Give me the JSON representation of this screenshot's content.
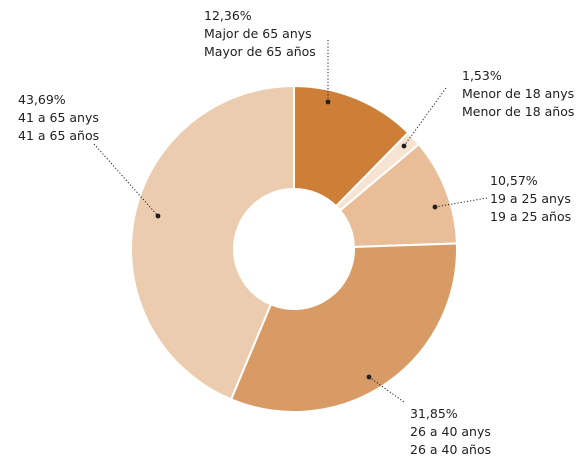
{
  "chart_data": {
    "type": "pie",
    "donut": true,
    "slices": [
      {
        "value": 12.36,
        "pct_label": "12,36%",
        "label_ca": "Major de 65 anys",
        "label_es": "Mayor de 65 años",
        "color": "#cd7f38"
      },
      {
        "value": 1.53,
        "pct_label": "1,53%",
        "label_ca": "Menor de 18 anys",
        "label_es": "Menor de 18 años",
        "color": "#f6e3d2"
      },
      {
        "value": 10.57,
        "pct_label": "10,57%",
        "label_ca": "19 a 25 anys",
        "label_es": "19 a 25 años",
        "color": "#e8bd97"
      },
      {
        "value": 31.85,
        "pct_label": "31,85%",
        "label_ca": "26 a 40 anys",
        "label_es": "26 a 40 años",
        "color": "#d89b66"
      },
      {
        "value": 43.69,
        "pct_label": "43,69%",
        "label_ca": "41 a 65 anys",
        "label_es": "41 a 65 años",
        "color": "#ecccae"
      }
    ]
  }
}
